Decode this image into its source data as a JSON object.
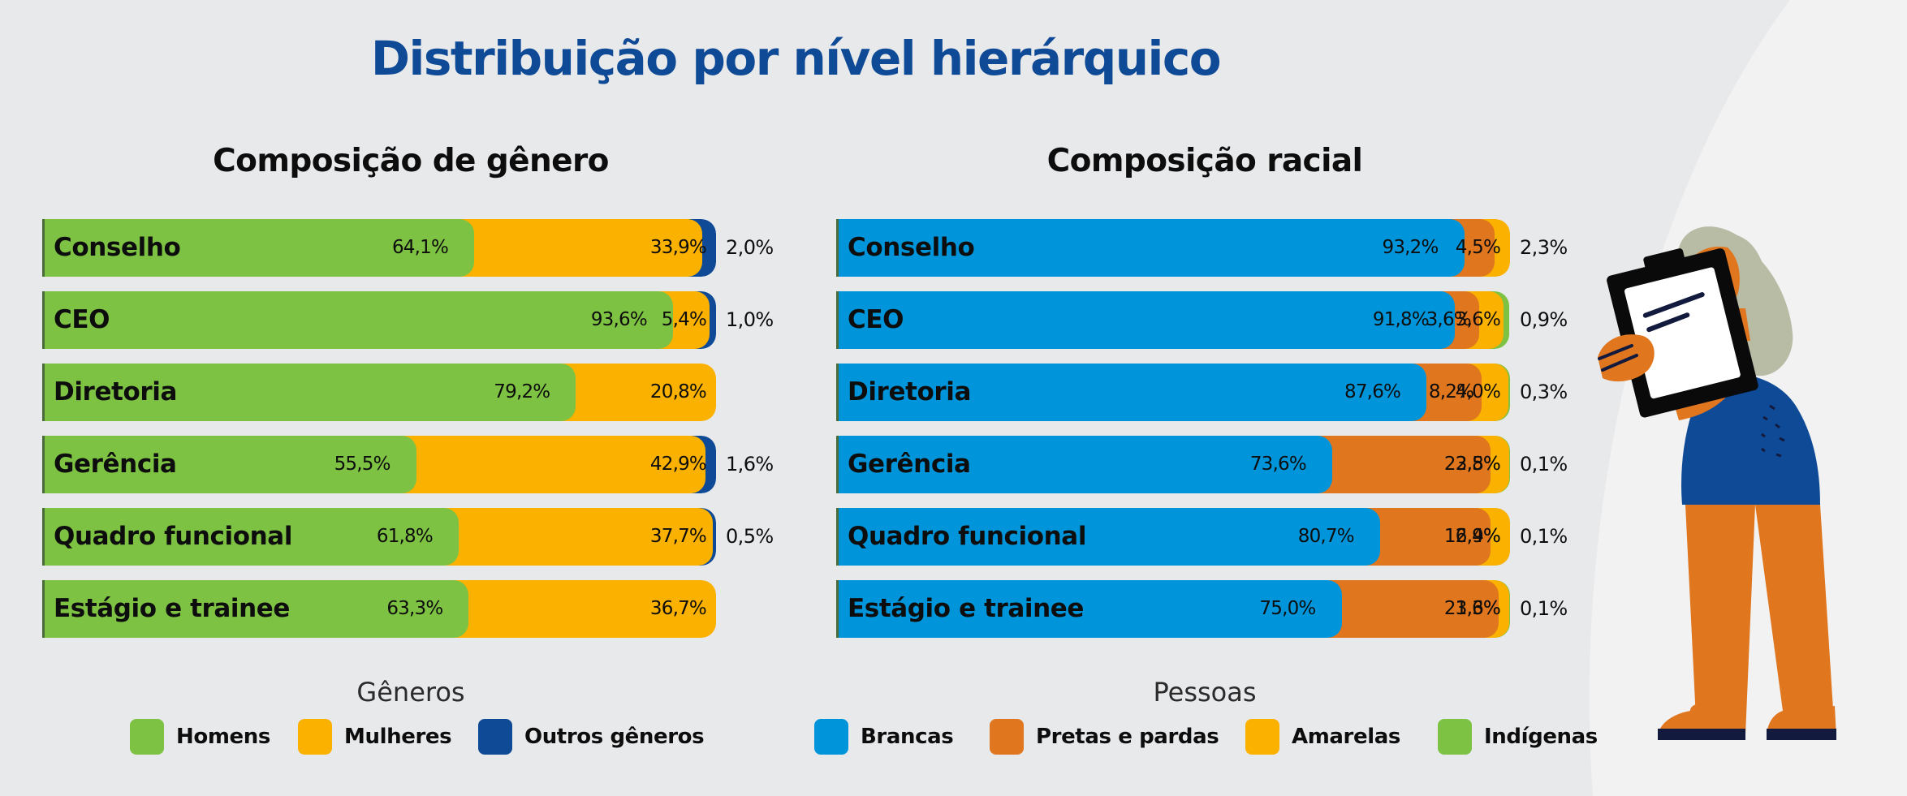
{
  "title": "Distribuição por nível hierárquico",
  "chart_data": [
    {
      "type": "bar",
      "orientation": "horizontal",
      "stacked": true,
      "normalized_percent": true,
      "title": "Composição de gênero",
      "legend_title": "Gêneros",
      "legend_position": "bottom",
      "categories": [
        "Conselho",
        "CEO",
        "Diretoria",
        "Gerência",
        "Quadro funcional",
        "Estágio e trainee"
      ],
      "series": [
        {
          "name": "Homens",
          "color": "#7dc242",
          "values": [
            64.1,
            93.6,
            79.2,
            55.5,
            61.8,
            63.3
          ],
          "labels": [
            "64,1%",
            "93,6%",
            "79,2%",
            "55,5%",
            "61,8%",
            "63,3%"
          ]
        },
        {
          "name": "Mulheres",
          "color": "#fbb100",
          "values": [
            33.9,
            5.4,
            20.8,
            42.9,
            37.7,
            36.7
          ],
          "labels": [
            "33,9%",
            "5,4%",
            "20,8%",
            "42,9%",
            "37,7%",
            "36,7%"
          ]
        },
        {
          "name": "Outros gêneros",
          "color": "#0f4a96",
          "values": [
            2.0,
            1.0,
            0.0,
            1.6,
            0.5,
            0.0
          ],
          "labels": [
            "2,0%",
            "1,0%",
            "",
            "1,6%",
            "0,5%",
            ""
          ]
        }
      ],
      "xlim": [
        0,
        100
      ],
      "grid": false
    },
    {
      "type": "bar",
      "orientation": "horizontal",
      "stacked": true,
      "normalized_percent": true,
      "title": "Composição racial",
      "legend_title": "Pessoas",
      "legend_position": "bottom",
      "categories": [
        "Conselho",
        "CEO",
        "Diretoria",
        "Gerência",
        "Quadro funcional",
        "Estágio e trainee"
      ],
      "series": [
        {
          "name": "Brancas",
          "color": "#0095da",
          "values": [
            93.2,
            91.8,
            87.6,
            73.6,
            80.7,
            75.0
          ],
          "labels": [
            "93,2%",
            "91,8%",
            "87,6%",
            "73,6%",
            "80,7%",
            "75,0%"
          ]
        },
        {
          "name": "Pretas e pardas",
          "color": "#e0761e",
          "values": [
            4.5,
            3.6,
            8.2,
            23.5,
            16.4,
            23.3
          ],
          "labels": [
            "4,5%",
            "3,6%",
            "8,2%",
            "23,5%",
            "16,4%",
            "23,3%"
          ]
        },
        {
          "name": "Amarelas",
          "color": "#fbb100",
          "values": [
            2.3,
            3.6,
            4.0,
            2.8,
            2.9,
            1.6
          ],
          "labels": [
            "",
            "3,6%",
            "4,0%",
            "2,8%",
            "2,9%",
            "1,6%"
          ]
        },
        {
          "name": "Indígenas",
          "color": "#7dc242",
          "values": [
            0.0,
            0.9,
            0.3,
            0.1,
            0.1,
            0.1
          ],
          "labels": [
            "",
            "",
            "",
            "",
            "",
            ""
          ]
        }
      ],
      "outside_labels": [
        "2,3%",
        "0,9%",
        "0,3%",
        "0,1%",
        "0,1%",
        "0,1%"
      ],
      "xlim": [
        0,
        100
      ],
      "grid": false
    }
  ],
  "colors": {
    "title": "#0f4a96",
    "background": "#e8e9eb"
  },
  "illustration": "person-holding-clipboard"
}
